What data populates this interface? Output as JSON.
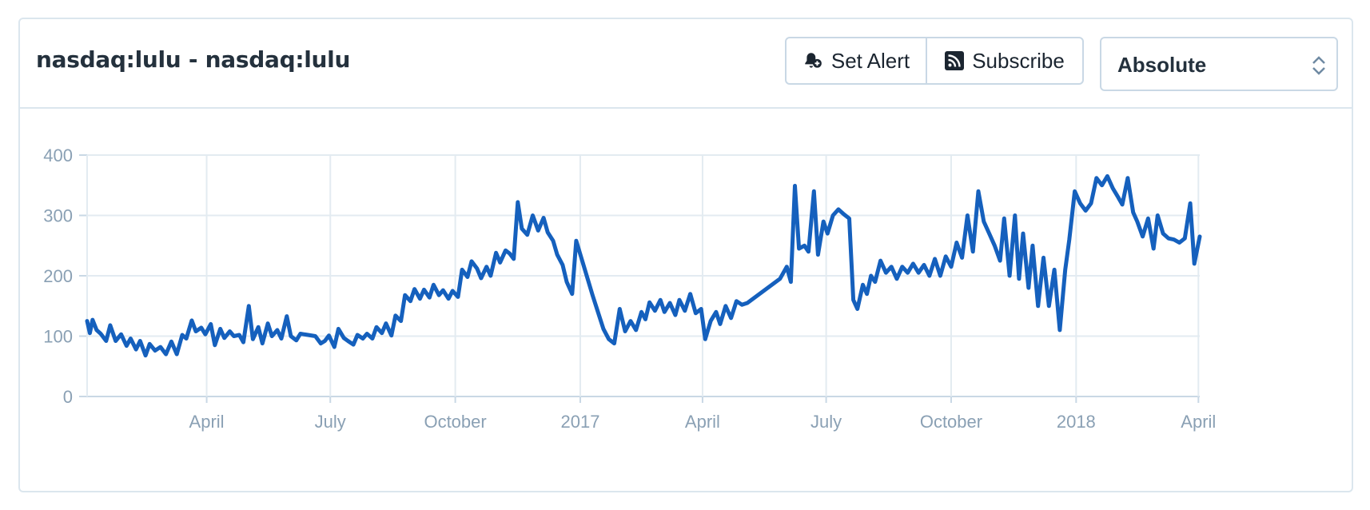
{
  "header": {
    "title": "nasdaq:lulu - nasdaq:lulu",
    "set_alert_label": "Set Alert",
    "subscribe_label": "Subscribe",
    "mode_select_value": "Absolute"
  },
  "colors": {
    "line": "#1560bd",
    "grid": "#e3ebf1",
    "axis_text": "#8aa0b4",
    "border": "#dbe6ee"
  },
  "chart_data": {
    "type": "line",
    "title": "",
    "xlabel": "",
    "ylabel": "",
    "ylim": [
      0,
      400
    ],
    "yticks": [
      0,
      100,
      200,
      300,
      400
    ],
    "xlim": [
      "2016-01-04",
      "2018-04-02"
    ],
    "xticks": [
      {
        "date": "2016-04-01",
        "label": "April"
      },
      {
        "date": "2016-07-01",
        "label": "July"
      },
      {
        "date": "2016-10-01",
        "label": "October"
      },
      {
        "date": "2017-01-01",
        "label": "2017"
      },
      {
        "date": "2017-04-01",
        "label": "April"
      },
      {
        "date": "2017-07-01",
        "label": "July"
      },
      {
        "date": "2017-10-01",
        "label": "October"
      },
      {
        "date": "2018-01-01",
        "label": "2018"
      },
      {
        "date": "2018-04-01",
        "label": "April"
      }
    ],
    "grid": true,
    "series": [
      {
        "name": "",
        "points": [
          [
            "2016-01-04",
            125
          ],
          [
            "2016-01-06",
            105
          ],
          [
            "2016-01-08",
            127
          ],
          [
            "2016-01-11",
            110
          ],
          [
            "2016-01-14",
            104
          ],
          [
            "2016-01-18",
            92
          ],
          [
            "2016-01-21",
            118
          ],
          [
            "2016-01-25",
            92
          ],
          [
            "2016-01-29",
            103
          ],
          [
            "2016-02-02",
            84
          ],
          [
            "2016-02-05",
            96
          ],
          [
            "2016-02-09",
            78
          ],
          [
            "2016-02-12",
            92
          ],
          [
            "2016-02-16",
            68
          ],
          [
            "2016-02-19",
            87
          ],
          [
            "2016-02-23",
            76
          ],
          [
            "2016-02-27",
            82
          ],
          [
            "2016-03-02",
            70
          ],
          [
            "2016-03-06",
            91
          ],
          [
            "2016-03-10",
            70
          ],
          [
            "2016-03-14",
            102
          ],
          [
            "2016-03-17",
            96
          ],
          [
            "2016-03-21",
            126
          ],
          [
            "2016-03-24",
            108
          ],
          [
            "2016-03-28",
            114
          ],
          [
            "2016-03-31",
            103
          ],
          [
            "2016-04-04",
            120
          ],
          [
            "2016-04-07",
            85
          ],
          [
            "2016-04-11",
            112
          ],
          [
            "2016-04-14",
            97
          ],
          [
            "2016-04-18",
            108
          ],
          [
            "2016-04-21",
            100
          ],
          [
            "2016-04-25",
            102
          ],
          [
            "2016-04-28",
            90
          ],
          [
            "2016-05-02",
            150
          ],
          [
            "2016-05-05",
            95
          ],
          [
            "2016-05-09",
            115
          ],
          [
            "2016-05-12",
            88
          ],
          [
            "2016-05-16",
            121
          ],
          [
            "2016-05-19",
            100
          ],
          [
            "2016-05-23",
            110
          ],
          [
            "2016-05-26",
            96
          ],
          [
            "2016-05-30",
            133
          ],
          [
            "2016-06-02",
            100
          ],
          [
            "2016-06-06",
            93
          ],
          [
            "2016-06-09",
            104
          ],
          [
            "2016-06-20",
            100
          ],
          [
            "2016-06-24",
            88
          ],
          [
            "2016-06-27",
            92
          ],
          [
            "2016-06-30",
            101
          ],
          [
            "2016-07-04",
            82
          ],
          [
            "2016-07-07",
            112
          ],
          [
            "2016-07-11",
            97
          ],
          [
            "2016-07-14",
            92
          ],
          [
            "2016-07-18",
            86
          ],
          [
            "2016-07-21",
            102
          ],
          [
            "2016-07-25",
            96
          ],
          [
            "2016-07-28",
            104
          ],
          [
            "2016-08-01",
            96
          ],
          [
            "2016-08-04",
            115
          ],
          [
            "2016-08-08",
            105
          ],
          [
            "2016-08-11",
            121
          ],
          [
            "2016-08-15",
            101
          ],
          [
            "2016-08-18",
            134
          ],
          [
            "2016-08-22",
            125
          ],
          [
            "2016-08-25",
            168
          ],
          [
            "2016-08-29",
            158
          ],
          [
            "2016-09-01",
            178
          ],
          [
            "2016-09-05",
            162
          ],
          [
            "2016-09-08",
            177
          ],
          [
            "2016-09-12",
            164
          ],
          [
            "2016-09-15",
            185
          ],
          [
            "2016-09-19",
            168
          ],
          [
            "2016-09-22",
            176
          ],
          [
            "2016-09-26",
            162
          ],
          [
            "2016-09-29",
            175
          ],
          [
            "2016-10-03",
            165
          ],
          [
            "2016-10-06",
            210
          ],
          [
            "2016-10-10",
            198
          ],
          [
            "2016-10-13",
            224
          ],
          [
            "2016-10-17",
            212
          ],
          [
            "2016-10-20",
            196
          ],
          [
            "2016-10-24",
            215
          ],
          [
            "2016-10-27",
            200
          ],
          [
            "2016-10-31",
            238
          ],
          [
            "2016-11-03",
            222
          ],
          [
            "2016-11-07",
            242
          ],
          [
            "2016-11-10",
            237
          ],
          [
            "2016-11-13",
            228
          ],
          [
            "2016-11-16",
            322
          ],
          [
            "2016-11-19",
            278
          ],
          [
            "2016-11-23",
            268
          ],
          [
            "2016-11-27",
            300
          ],
          [
            "2016-12-01",
            275
          ],
          [
            "2016-12-05",
            296
          ],
          [
            "2016-12-08",
            272
          ],
          [
            "2016-12-12",
            258
          ],
          [
            "2016-12-15",
            235
          ],
          [
            "2016-12-19",
            218
          ],
          [
            "2016-12-22",
            190
          ],
          [
            "2016-12-26",
            170
          ],
          [
            "2016-12-29",
            258
          ],
          [
            "2017-01-02",
            228
          ],
          [
            "2017-01-06",
            198
          ],
          [
            "2017-01-10",
            168
          ],
          [
            "2017-01-14",
            140
          ],
          [
            "2017-01-18",
            112
          ],
          [
            "2017-01-22",
            95
          ],
          [
            "2017-01-26",
            88
          ],
          [
            "2017-01-30",
            145
          ],
          [
            "2017-02-03",
            108
          ],
          [
            "2017-02-07",
            125
          ],
          [
            "2017-02-11",
            110
          ],
          [
            "2017-02-15",
            140
          ],
          [
            "2017-02-18",
            128
          ],
          [
            "2017-02-21",
            156
          ],
          [
            "2017-02-25",
            142
          ],
          [
            "2017-03-01",
            160
          ],
          [
            "2017-03-04",
            140
          ],
          [
            "2017-03-08",
            155
          ],
          [
            "2017-03-12",
            135
          ],
          [
            "2017-03-15",
            160
          ],
          [
            "2017-03-19",
            142
          ],
          [
            "2017-03-23",
            170
          ],
          [
            "2017-03-27",
            138
          ],
          [
            "2017-03-31",
            145
          ],
          [
            "2017-04-03",
            95
          ],
          [
            "2017-04-07",
            125
          ],
          [
            "2017-04-11",
            140
          ],
          [
            "2017-04-14",
            120
          ],
          [
            "2017-04-18",
            150
          ],
          [
            "2017-04-22",
            130
          ],
          [
            "2017-04-26",
            158
          ],
          [
            "2017-04-30",
            152
          ],
          [
            "2017-05-04",
            155
          ],
          [
            "2017-05-28",
            195
          ],
          [
            "2017-06-02",
            215
          ],
          [
            "2017-06-05",
            190
          ],
          [
            "2017-06-08",
            349
          ],
          [
            "2017-06-11",
            245
          ],
          [
            "2017-06-15",
            250
          ],
          [
            "2017-06-18",
            240
          ],
          [
            "2017-06-22",
            340
          ],
          [
            "2017-06-25",
            235
          ],
          [
            "2017-06-29",
            290
          ],
          [
            "2017-07-02",
            270
          ],
          [
            "2017-07-06",
            300
          ],
          [
            "2017-07-10",
            310
          ],
          [
            "2017-07-14",
            302
          ],
          [
            "2017-07-18",
            295
          ],
          [
            "2017-07-21",
            160
          ],
          [
            "2017-07-24",
            145
          ],
          [
            "2017-07-28",
            185
          ],
          [
            "2017-07-31",
            170
          ],
          [
            "2017-08-03",
            200
          ],
          [
            "2017-08-06",
            190
          ],
          [
            "2017-08-10",
            225
          ],
          [
            "2017-08-14",
            205
          ],
          [
            "2017-08-18",
            215
          ],
          [
            "2017-08-22",
            195
          ],
          [
            "2017-08-26",
            215
          ],
          [
            "2017-08-30",
            205
          ],
          [
            "2017-09-03",
            220
          ],
          [
            "2017-09-07",
            205
          ],
          [
            "2017-09-11",
            218
          ],
          [
            "2017-09-15",
            200
          ],
          [
            "2017-09-19",
            228
          ],
          [
            "2017-09-23",
            200
          ],
          [
            "2017-09-27",
            232
          ],
          [
            "2017-10-01",
            215
          ],
          [
            "2017-10-05",
            255
          ],
          [
            "2017-10-09",
            230
          ],
          [
            "2017-10-13",
            300
          ],
          [
            "2017-10-17",
            240
          ],
          [
            "2017-10-21",
            340
          ],
          [
            "2017-10-25",
            290
          ],
          [
            "2017-10-29",
            270
          ],
          [
            "2017-11-02",
            250
          ],
          [
            "2017-11-06",
            225
          ],
          [
            "2017-11-09",
            295
          ],
          [
            "2017-11-13",
            200
          ],
          [
            "2017-11-17",
            300
          ],
          [
            "2017-11-20",
            195
          ],
          [
            "2017-11-23",
            270
          ],
          [
            "2017-11-27",
            180
          ],
          [
            "2017-11-30",
            250
          ],
          [
            "2017-12-04",
            150
          ],
          [
            "2017-12-08",
            230
          ],
          [
            "2017-12-12",
            150
          ],
          [
            "2017-12-16",
            210
          ],
          [
            "2017-12-20",
            110
          ],
          [
            "2017-12-24",
            210
          ],
          [
            "2017-12-27",
            260
          ],
          [
            "2017-12-31",
            340
          ],
          [
            "2018-01-04",
            320
          ],
          [
            "2018-01-08",
            308
          ],
          [
            "2018-01-12",
            320
          ],
          [
            "2018-01-16",
            362
          ],
          [
            "2018-01-20",
            350
          ],
          [
            "2018-01-24",
            365
          ],
          [
            "2018-01-28",
            345
          ],
          [
            "2018-02-01",
            330
          ],
          [
            "2018-02-04",
            318
          ],
          [
            "2018-02-08",
            362
          ],
          [
            "2018-02-12",
            305
          ],
          [
            "2018-02-15",
            290
          ],
          [
            "2018-02-19",
            265
          ],
          [
            "2018-02-23",
            295
          ],
          [
            "2018-02-27",
            245
          ],
          [
            "2018-03-02",
            300
          ],
          [
            "2018-03-06",
            270
          ],
          [
            "2018-03-10",
            262
          ],
          [
            "2018-03-14",
            260
          ],
          [
            "2018-03-18",
            255
          ],
          [
            "2018-03-22",
            262
          ],
          [
            "2018-03-26",
            320
          ],
          [
            "2018-03-29",
            220
          ],
          [
            "2018-04-02",
            265
          ]
        ]
      }
    ]
  }
}
